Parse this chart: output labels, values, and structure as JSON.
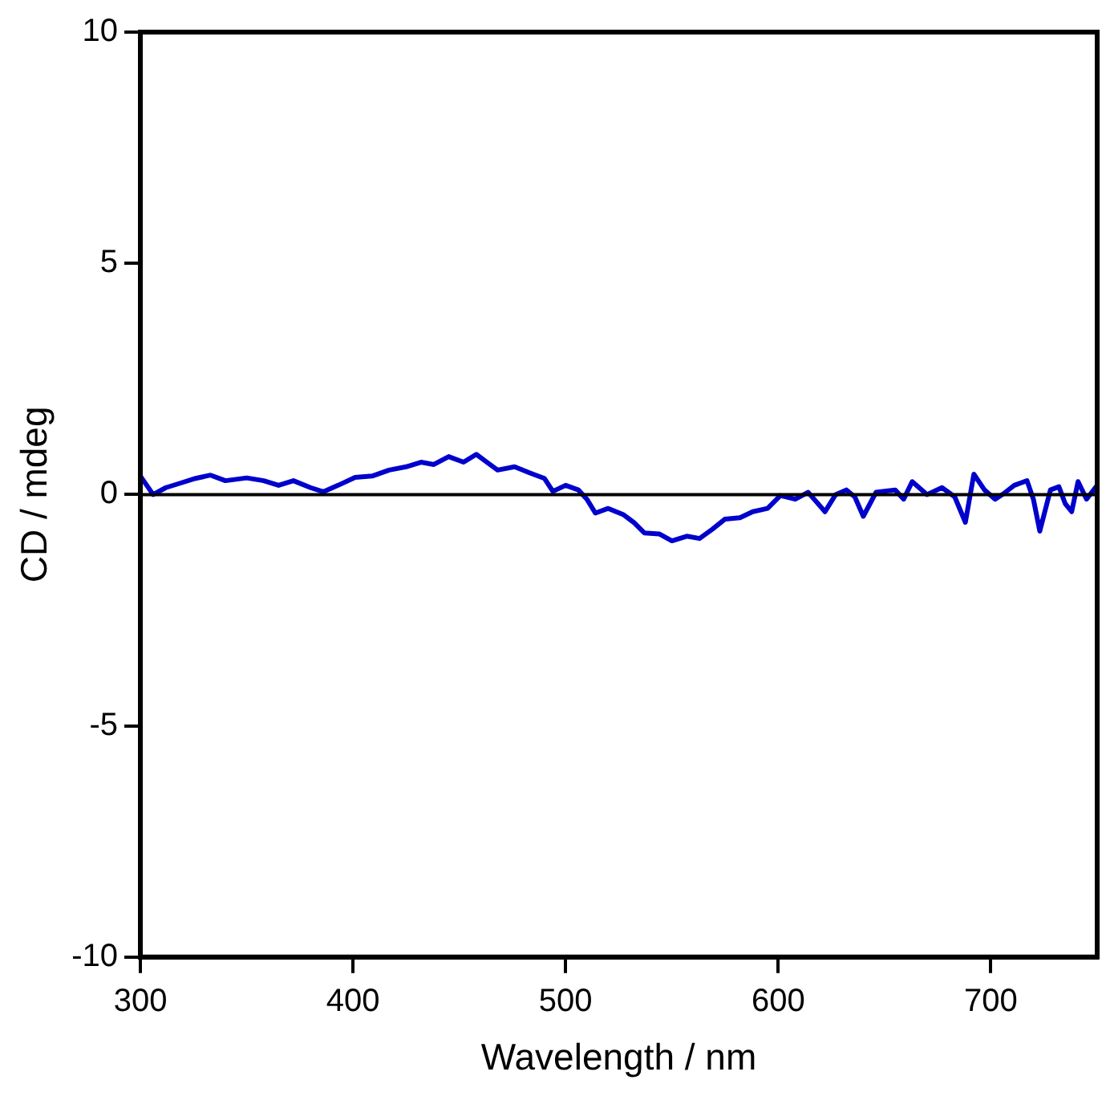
{
  "chart_data": {
    "type": "line",
    "xlabel": "Wavelength / nm",
    "ylabel": "CD / mdeg",
    "xlim": [
      300,
      750
    ],
    "xticks": [
      300,
      400,
      500,
      600,
      700
    ],
    "ylim": [
      -10,
      10
    ],
    "yticks": [
      -10,
      -5,
      0,
      5,
      10
    ],
    "grid": false,
    "legend": false,
    "marker": "none",
    "line_style": "solid",
    "ref_lines": [
      {
        "axis": "y",
        "value": 0,
        "color": "#000000"
      }
    ],
    "series": [
      {
        "color": "#0000cc",
        "x": [
          300,
          303,
          306,
          312,
          319,
          326,
          333,
          340,
          350,
          358,
          365,
          372,
          380,
          386,
          393,
          401,
          409,
          417,
          425,
          432,
          438,
          445,
          452,
          458,
          463,
          468,
          476,
          483,
          490,
          494,
          500,
          506,
          510,
          514,
          520,
          527,
          532,
          537,
          544,
          550,
          557,
          563,
          569,
          575,
          582,
          588,
          595,
          601,
          608,
          614,
          622,
          627,
          632,
          636,
          640,
          646,
          655,
          659,
          663,
          670,
          677,
          683,
          688,
          692,
          697,
          702,
          706,
          711,
          717,
          720,
          723,
          728,
          732,
          735,
          738,
          741,
          745,
          750
        ],
        "values": [
          0.4,
          0.2,
          0.0,
          0.15,
          0.25,
          0.35,
          0.42,
          0.3,
          0.36,
          0.3,
          0.2,
          0.3,
          0.15,
          0.06,
          0.2,
          0.37,
          0.4,
          0.53,
          0.6,
          0.7,
          0.65,
          0.82,
          0.7,
          0.87,
          0.7,
          0.53,
          0.6,
          0.47,
          0.35,
          0.07,
          0.2,
          0.1,
          -0.1,
          -0.4,
          -0.3,
          -0.43,
          -0.6,
          -0.83,
          -0.85,
          -1.0,
          -0.9,
          -0.95,
          -0.75,
          -0.53,
          -0.5,
          -0.37,
          -0.3,
          -0.02,
          -0.1,
          0.05,
          -0.37,
          0.0,
          0.1,
          -0.05,
          -0.47,
          0.05,
          0.1,
          -0.1,
          0.28,
          0.0,
          0.15,
          -0.05,
          -0.6,
          0.44,
          0.1,
          -0.1,
          0.02,
          0.2,
          0.3,
          -0.1,
          -0.79,
          0.1,
          0.17,
          -0.2,
          -0.37,
          0.28,
          -0.1,
          0.2
        ]
      }
    ]
  }
}
